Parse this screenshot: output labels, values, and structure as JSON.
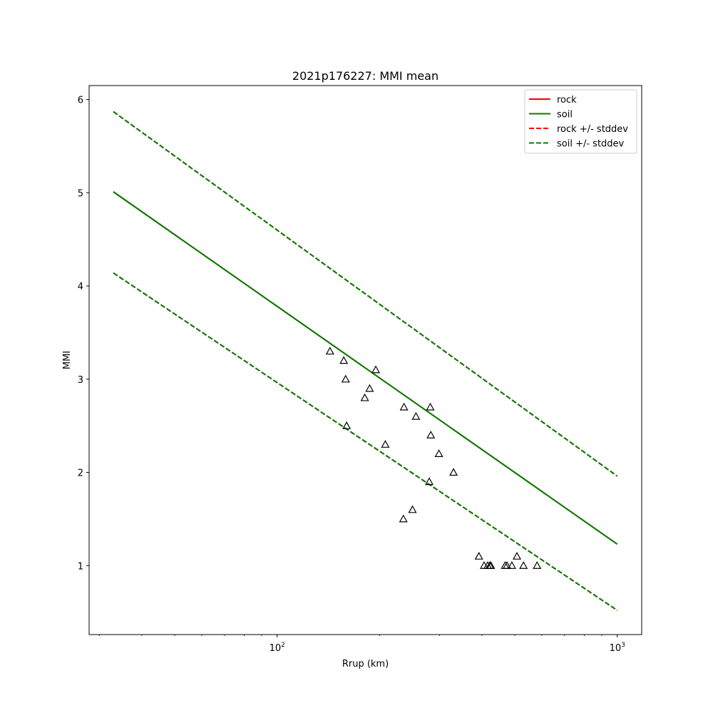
{
  "chart_data": {
    "type": "scatter",
    "title": "2021p176227: MMI mean",
    "xlabel": "Rrup (km)",
    "ylabel": "MMI",
    "xscale": "log",
    "xlim": [
      28,
      1180
    ],
    "ylim": [
      0.26,
      6.15
    ],
    "x_ticks": [
      {
        "value": 100,
        "base": "10",
        "exp": "2"
      },
      {
        "value": 1000,
        "base": "10",
        "exp": "3"
      }
    ],
    "y_ticks": [
      1,
      2,
      3,
      4,
      5,
      6
    ],
    "grid": false,
    "legend": {
      "placement": "top-right",
      "entries": [
        {
          "label": "rock",
          "color": "#ff0000",
          "dashed": false
        },
        {
          "label": "soil",
          "color": "#008000",
          "dashed": false
        },
        {
          "label": "rock +/- stddev",
          "color": "#ff0000",
          "dashed": true
        },
        {
          "label": "soil +/- stddev",
          "color": "#008000",
          "dashed": true
        }
      ]
    },
    "lines": [
      {
        "role": "rock-mean",
        "color": "#ff0000",
        "dashed": false,
        "x": [
          33,
          1000
        ],
        "y": [
          5.01,
          1.23
        ]
      },
      {
        "role": "soil-mean",
        "color": "#008000",
        "dashed": false,
        "x": [
          33,
          1000
        ],
        "y": [
          5.01,
          1.23
        ]
      },
      {
        "role": "rock-plus",
        "color": "#ff0000",
        "dashed": true,
        "x": [
          33,
          1000
        ],
        "y": [
          5.87,
          1.96
        ]
      },
      {
        "role": "rock-minus",
        "color": "#ff0000",
        "dashed": true,
        "x": [
          33,
          1000
        ],
        "y": [
          4.14,
          0.52
        ]
      },
      {
        "role": "soil-plus",
        "color": "#008000",
        "dashed": true,
        "x": [
          33,
          1000
        ],
        "y": [
          5.87,
          1.96
        ]
      },
      {
        "role": "soil-minus",
        "color": "#008000",
        "dashed": true,
        "x": [
          33,
          1000
        ],
        "y": [
          4.14,
          0.52
        ]
      }
    ],
    "points": {
      "marker": "triangle",
      "x": [
        143,
        157,
        159,
        160,
        181,
        187,
        195,
        208,
        235,
        236,
        250,
        256,
        280,
        282,
        283,
        299,
        330,
        392,
        406,
        416,
        422,
        425,
        468,
        474,
        490,
        507,
        530,
        581
      ],
      "y": [
        3.3,
        3.2,
        3.0,
        2.5,
        2.8,
        2.9,
        3.1,
        2.3,
        1.5,
        2.7,
        1.6,
        2.6,
        1.9,
        2.7,
        2.4,
        2.2,
        2.0,
        1.1,
        1.0,
        1.0,
        1.0,
        1.0,
        1.0,
        1.0,
        1.0,
        1.1,
        1.0,
        1.0
      ]
    }
  }
}
